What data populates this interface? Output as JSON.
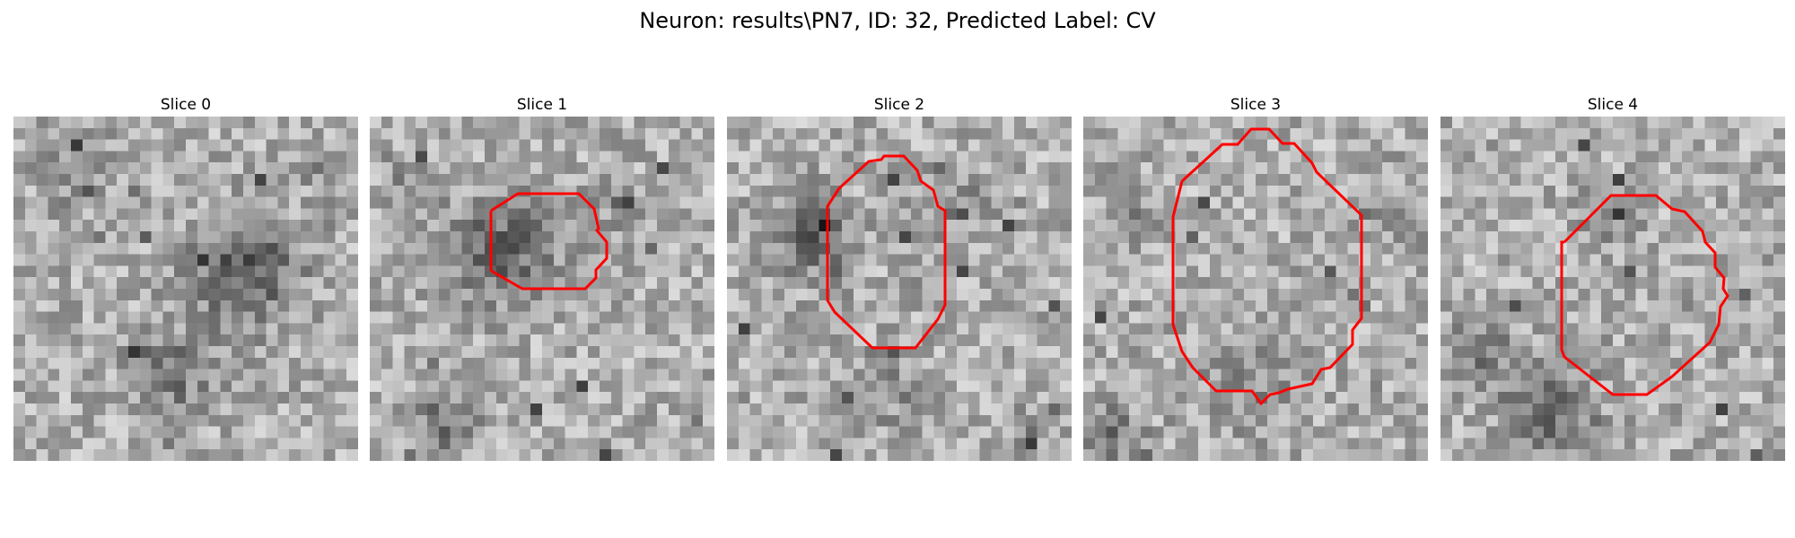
{
  "figure": {
    "title": "Neuron: results\\PN7, ID: 32, Predicted Label: CV"
  },
  "panels": [
    {
      "title": "Slice 0",
      "has_contour": false
    },
    {
      "title": "Slice 1",
      "has_contour": true
    },
    {
      "title": "Slice 2",
      "has_contour": true
    },
    {
      "title": "Slice 3",
      "has_contour": true
    },
    {
      "title": "Slice 4",
      "has_contour": true
    }
  ],
  "colors": {
    "contour": "#ff0000",
    "background": "#ffffff"
  }
}
